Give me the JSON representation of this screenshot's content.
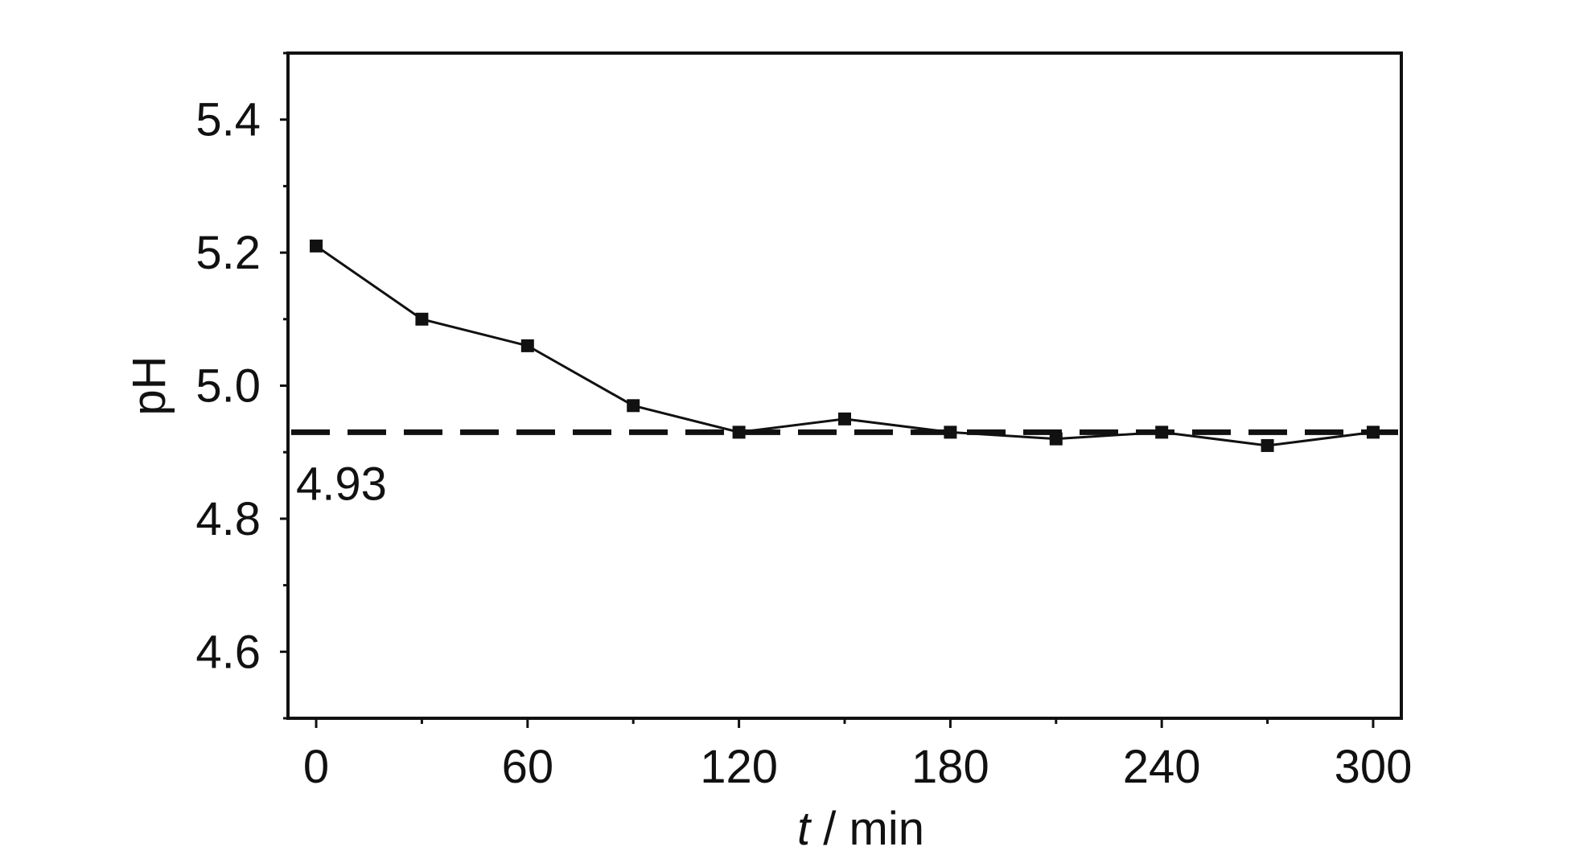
{
  "chart_data": {
    "type": "line",
    "title": "",
    "xlabel_italic": "t",
    "xlabel_rest": " / min",
    "ylabel": "pH",
    "xlim": [
      -8,
      308
    ],
    "ylim": [
      4.5,
      5.5
    ],
    "x_ticks": [
      "0",
      "60",
      "120",
      "180",
      "240",
      "300"
    ],
    "y_ticks": [
      "4.6",
      "4.8",
      "5.0",
      "5.2",
      "5.4"
    ],
    "x_minor_ticks": [
      30,
      90,
      150,
      210,
      270
    ],
    "y_minor_ticks": [
      4.5,
      4.7,
      4.9,
      5.1,
      5.3,
      5.5
    ],
    "grid": false,
    "legend": "none",
    "series": [
      {
        "x": [
          0,
          30,
          60,
          90,
          120,
          150,
          180,
          210,
          240,
          270,
          300
        ],
        "y": [
          5.21,
          5.1,
          5.06,
          4.97,
          4.93,
          4.95,
          4.93,
          4.92,
          4.93,
          4.91,
          4.93
        ],
        "marker": "square",
        "color": "#111111"
      }
    ],
    "reference_line": {
      "y": 4.93,
      "label": "4.93",
      "style": "dashed",
      "color": "#111111"
    }
  }
}
